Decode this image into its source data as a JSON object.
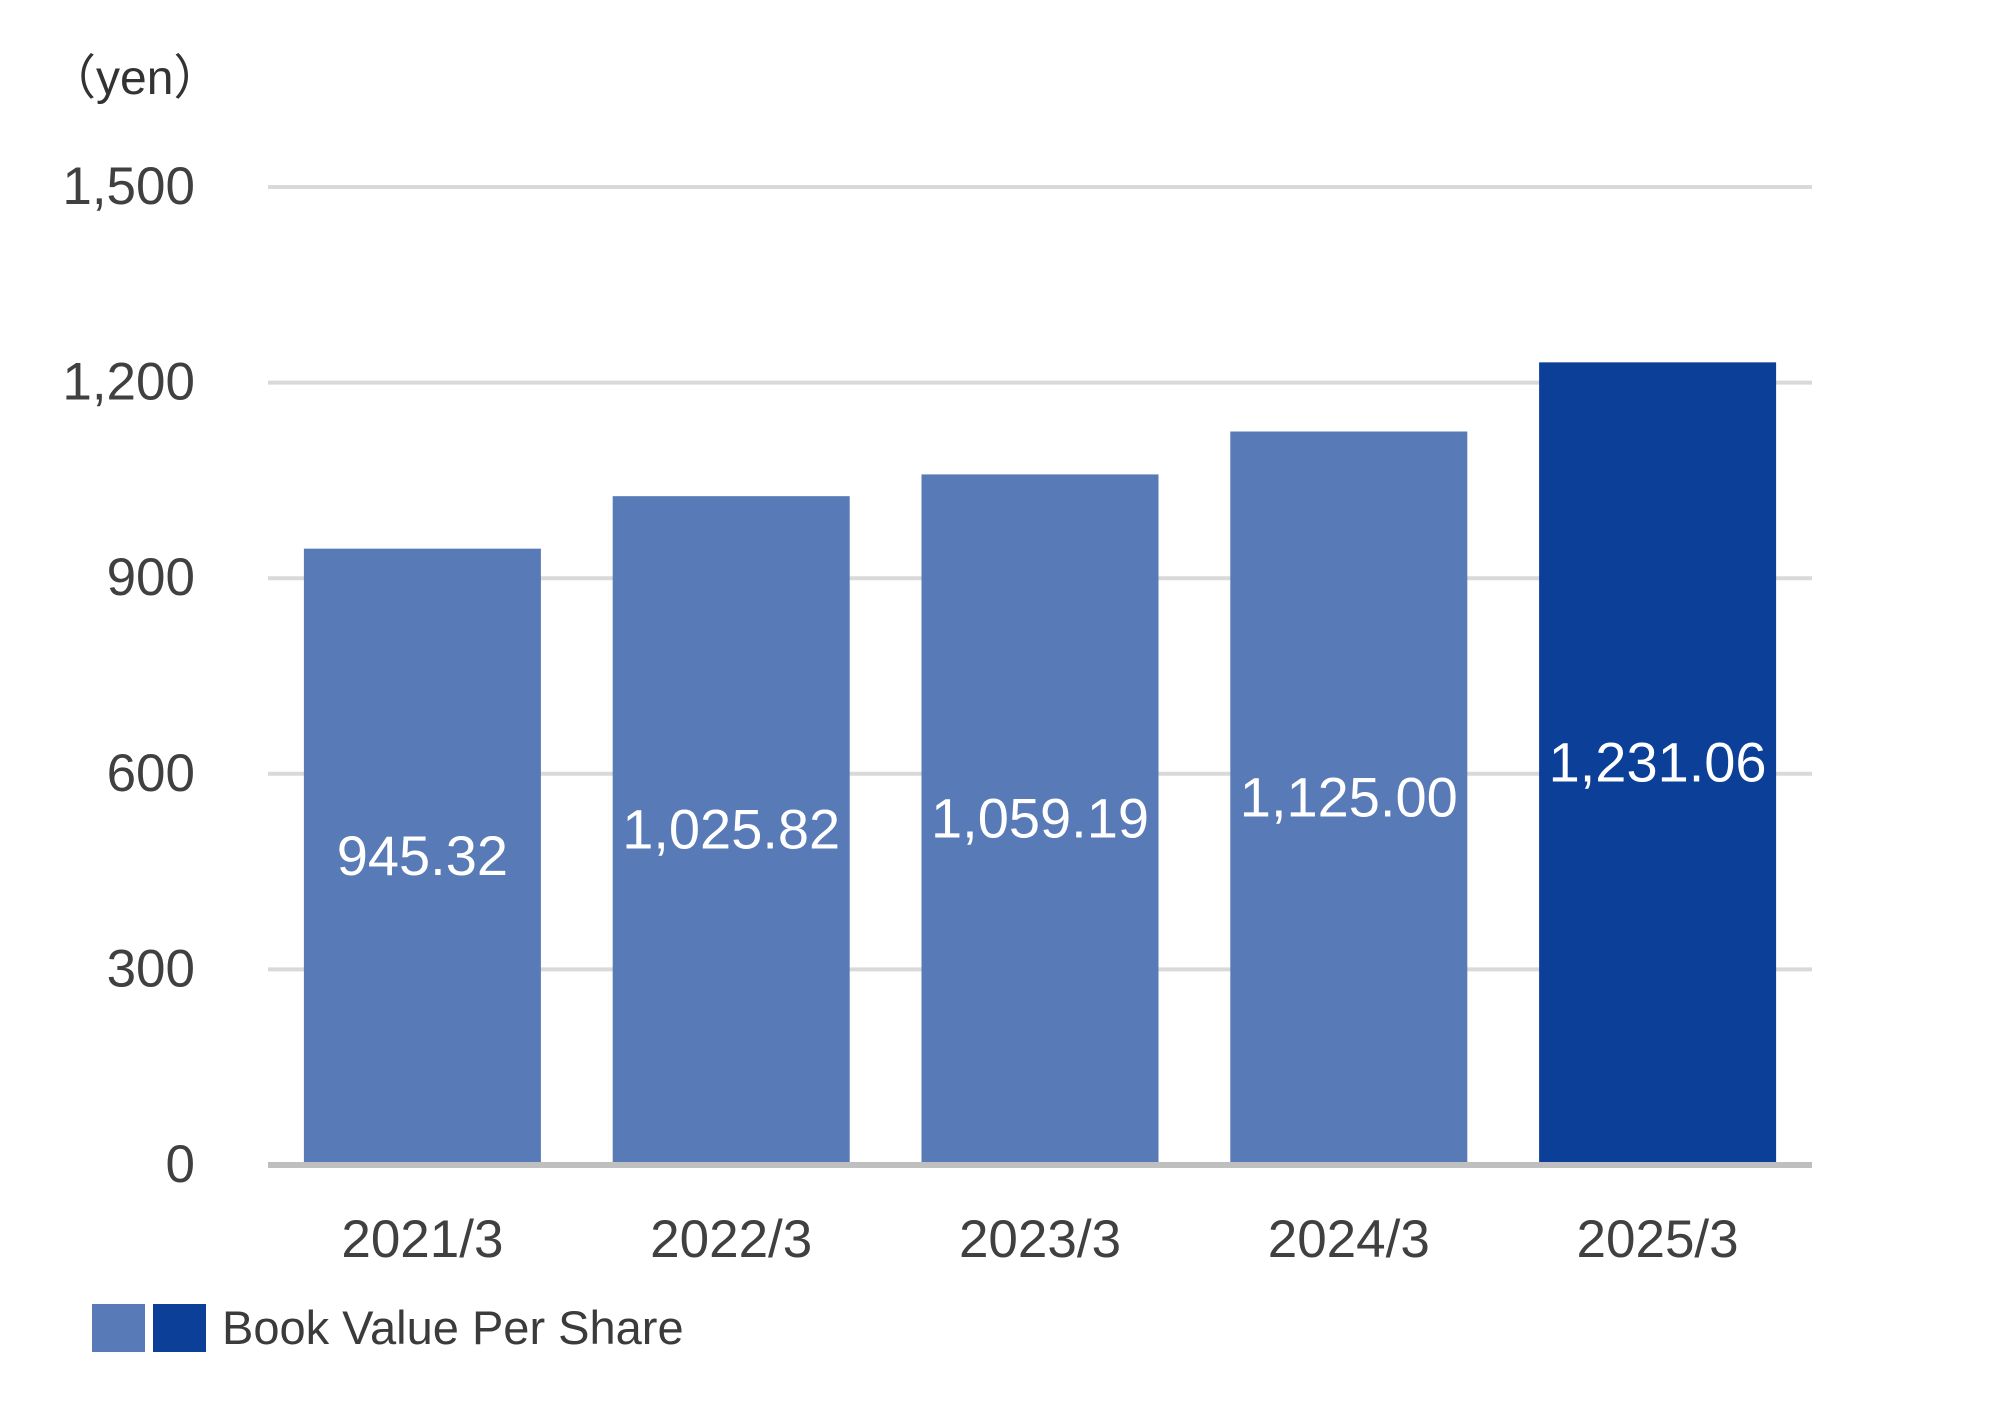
{
  "chart_data": {
    "type": "bar",
    "unit_label": "（yen）",
    "categories": [
      "2021/3",
      "2022/3",
      "2023/3",
      "2024/3",
      "2025/3"
    ],
    "series": [
      {
        "name": "Book Value Per Share",
        "values": [
          945.32,
          1025.82,
          1059.19,
          1125.0,
          1231.06
        ],
        "data_labels": [
          "945.32",
          "1,025.82",
          "1,059.19",
          "1,125.00",
          "1,231.06"
        ]
      }
    ],
    "ylim": [
      0,
      1500
    ],
    "yticks": [
      0,
      300,
      600,
      900,
      1200,
      1500
    ],
    "ytick_labels": [
      "0",
      "300",
      "600",
      "900",
      "1,200",
      "1,500"
    ],
    "grid": true,
    "legend_placement": "bottom-left",
    "colors": {
      "bar": "#587ab7",
      "highlight_bar": "#0c3f97",
      "grid": "#d9d9d9",
      "axis": "#bfbfbf",
      "tick_text": "#404040",
      "data_label_text": "#ffffff"
    },
    "highlight_index": 4
  },
  "legend": {
    "label": "Book Value Per Share"
  }
}
